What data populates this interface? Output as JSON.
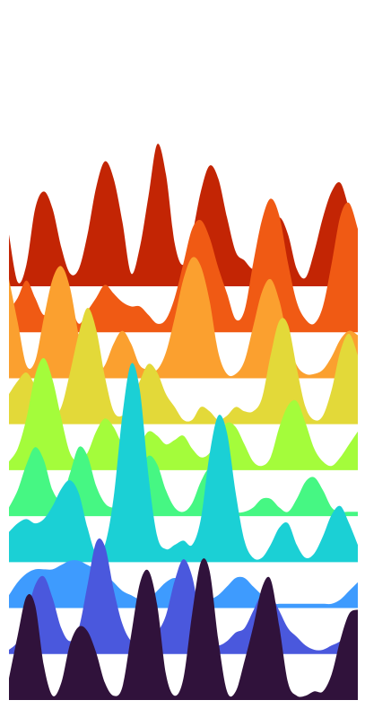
{
  "chart_data": {
    "type": "area",
    "title": "",
    "xlabel": "",
    "ylabel": "",
    "style": "ridgeline",
    "axes_visible": false,
    "grid": false,
    "legend": "none",
    "x": [
      0,
      0.25,
      0.5,
      0.75,
      1,
      1.25,
      1.5,
      1.75,
      2,
      2.25,
      2.5,
      2.75,
      3,
      3.25,
      3.5,
      3.75,
      4,
      4.25,
      4.5,
      4.75,
      5,
      5.25,
      5.5,
      5.75,
      6,
      6.25,
      6.5,
      6.75,
      7,
      7.25,
      7.5,
      7.75,
      8,
      8.25,
      8.5,
      8.75,
      9,
      9.25,
      9.5,
      9.75,
      10
    ],
    "xlim": [
      0,
      10
    ],
    "ylim": [
      0,
      12
    ],
    "series": [
      {
        "color": "#c32504",
        "values": [
          1.2,
          0.1,
          0.5,
          1.8,
          2.2,
          1.8,
          0.9,
          0.3,
          0.4,
          1.2,
          2.3,
          2.9,
          2.5,
          1.5,
          0.3,
          0.9,
          2.1,
          3.3,
          2.6,
          1.0,
          0.5,
          1.2,
          2.2,
          2.8,
          2.5,
          1.6,
          0.8,
          0.6,
          0.4,
          0.6,
          1.2,
          1.6,
          1.2,
          0.4,
          0.2,
          0.8,
          1.6,
          2.2,
          2.4,
          1.8,
          1.2
        ]
      },
      {
        "color": "#f05a14",
        "values": [
          0.5,
          0.8,
          1.2,
          0.8,
          0.4,
          0.6,
          1.2,
          0.7,
          0.2,
          0.5,
          0.8,
          1.1,
          0.9,
          0.7,
          0.6,
          0.6,
          0.4,
          0.2,
          0.3,
          0.8,
          1.6,
          2.4,
          2.6,
          2.2,
          1.5,
          0.9,
          0.3,
          0.5,
          1.6,
          2.6,
          3.1,
          2.7,
          1.6,
          0.7,
          0.3,
          0.2,
          0.6,
          1.6,
          2.7,
          3.0,
          2.4
        ]
      },
      {
        "color": "#fba02f",
        "values": [
          2.3,
          1.3,
          0.3,
          0.4,
          1.4,
          2.3,
          2.6,
          2.1,
          1.0,
          0.2,
          0.1,
          0.3,
          0.8,
          1.1,
          0.8,
          0.3,
          0.2,
          0.2,
          0.6,
          1.4,
          2.3,
          2.8,
          2.6,
          1.8,
          0.6,
          0.1,
          0.1,
          0.4,
          1.2,
          2.0,
          2.3,
          1.8,
          0.9,
          0.3,
          0.1,
          0.1,
          0.2,
          0.5,
          0.9,
          1.1,
          1.0
        ]
      },
      {
        "color": "#e3d939",
        "values": [
          0.7,
          1.0,
          1.2,
          0.9,
          0.5,
          0.2,
          0.4,
          1.2,
          2.1,
          2.7,
          2.2,
          1.1,
          0.3,
          0.2,
          0.5,
          1.0,
          1.4,
          1.2,
          0.7,
          0.4,
          0.1,
          0.1,
          0.4,
          0.3,
          0.1,
          0.2,
          0.4,
          0.3,
          0.3,
          0.6,
          1.6,
          2.4,
          2.3,
          1.3,
          0.4,
          0.1,
          0.2,
          0.8,
          1.7,
          2.1,
          1.6
        ]
      },
      {
        "color": "#a4fc3b",
        "values": [
          0.2,
          0.5,
          1.2,
          2.2,
          2.6,
          2.1,
          1.2,
          0.4,
          0.2,
          0.4,
          0.9,
          1.2,
          1.0,
          0.6,
          0.4,
          0.6,
          0.9,
          0.8,
          0.6,
          0.7,
          0.8,
          0.5,
          0.3,
          0.4,
          0.8,
          1.1,
          1.0,
          0.6,
          0.2,
          0.1,
          0.3,
          1.0,
          1.5,
          1.6,
          1.1,
          0.5,
          0.2,
          0.1,
          0.3,
          0.6,
          0.9
        ]
      },
      {
        "color": "#46f783",
        "values": [
          0.2,
          0.6,
          1.2,
          1.6,
          1.3,
          0.6,
          0.4,
          1.0,
          1.6,
          1.4,
          0.7,
          0.3,
          0.2,
          0.3,
          0.6,
          1.0,
          1.4,
          1.2,
          0.6,
          0.2,
          0.1,
          0.3,
          0.8,
          1.1,
          0.8,
          0.3,
          0.1,
          0.1,
          0.2,
          0.4,
          0.4,
          0.2,
          0.1,
          0.4,
          0.8,
          0.9,
          0.6,
          0.2,
          0.1,
          0.1,
          0.1
        ]
      },
      {
        "color": "#1bd0d5",
        "values": [
          0.7,
          0.9,
          1.0,
          0.9,
          1.0,
          1.3,
          1.7,
          1.9,
          1.6,
          0.8,
          0.2,
          0.4,
          1.5,
          3.4,
          4.6,
          4.0,
          2.0,
          0.6,
          0.3,
          0.4,
          0.5,
          0.4,
          1.0,
          2.5,
          3.4,
          3.0,
          1.6,
          0.5,
          0.1,
          0.1,
          0.4,
          0.8,
          0.9,
          0.4,
          0.1,
          0.2,
          0.6,
          1.1,
          1.3,
          0.9,
          0.4
        ]
      },
      {
        "color": "#3e9bfe",
        "values": [
          0.3,
          0.6,
          0.8,
          0.9,
          0.9,
          0.9,
          1.0,
          1.1,
          1.1,
          1.0,
          0.9,
          0.8,
          0.6,
          0.4,
          0.3,
          0.2,
          0.2,
          0.4,
          0.6,
          0.7,
          0.6,
          0.4,
          0.2,
          0.2,
          0.3,
          0.5,
          0.7,
          0.7,
          0.5,
          0.3,
          0.1,
          0.1,
          0.1,
          0.1,
          0.1,
          0.1,
          0.1,
          0.1,
          0.2,
          0.4,
          0.6
        ]
      },
      {
        "color": "#4a58dd",
        "values": [
          0.1,
          0.3,
          0.9,
          1.6,
          1.8,
          1.3,
          0.6,
          0.3,
          0.6,
          1.6,
          2.6,
          2.5,
          1.5,
          0.7,
          0.3,
          0.2,
          0.3,
          0.5,
          0.9,
          1.7,
          2.2,
          1.8,
          0.8,
          0.3,
          0.2,
          0.3,
          0.5,
          0.6,
          1.0,
          1.4,
          1.4,
          1.0,
          0.6,
          0.4,
          0.2,
          0.1,
          0.1,
          0.2,
          0.3,
          0.5,
          0.7
        ]
      },
      {
        "color": "#30123b",
        "values": [
          0.5,
          1.5,
          2.4,
          2.2,
          0.8,
          0.1,
          0.4,
          1.3,
          1.7,
          1.6,
          1.1,
          0.4,
          0.1,
          0.3,
          1.5,
          2.7,
          3.0,
          2.2,
          0.6,
          0.1,
          0.5,
          2.0,
          3.2,
          3.0,
          1.4,
          0.2,
          0.2,
          0.9,
          1.7,
          2.6,
          2.8,
          1.7,
          0.4,
          0.1,
          0.1,
          0.2,
          0.2,
          0.6,
          1.4,
          2.0,
          2.1
        ]
      }
    ]
  }
}
